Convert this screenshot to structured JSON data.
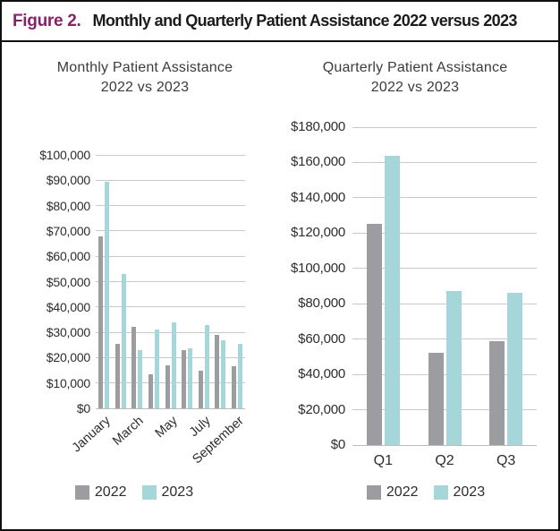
{
  "figure": {
    "label": "Figure 2.",
    "title": "Monthly and Quarterly Patient Assistance 2022 versus 2023"
  },
  "colors": {
    "accent_purple": "#86246a",
    "bar_2022": "#9b9da0",
    "bar_2023": "#a5d6d9",
    "gridline": "#c8c9ca",
    "baseline": "#babbbc",
    "axis_text": "#2e2d2c"
  },
  "chart_data": [
    {
      "id": "monthly",
      "type": "bar",
      "title": "Monthly Patient Assistance",
      "subtitle": "2022 vs 2023",
      "categories": [
        "January",
        "February",
        "March",
        "April",
        "May",
        "June",
        "July",
        "August",
        "September"
      ],
      "x_axis_labeled_categories": [
        "January",
        "March",
        "May",
        "July",
        "September"
      ],
      "series": [
        {
          "name": "2022",
          "values": [
            68000,
            25500,
            32000,
            13500,
            17000,
            23000,
            15000,
            29000,
            16500
          ]
        },
        {
          "name": "2023",
          "values": [
            89500,
            53000,
            23000,
            31000,
            34000,
            23500,
            33000,
            27000,
            25500
          ]
        }
      ],
      "ylim": [
        0,
        100000
      ],
      "ystep": 10000,
      "y_tick_labels": [
        "$0",
        "$10,000",
        "$20,000",
        "$30,000",
        "$40,000",
        "$50,000",
        "$60,000",
        "$70,000",
        "$80,000",
        "$90,000",
        "$100,000"
      ],
      "legend": [
        "2022",
        "2023"
      ],
      "legend_position": "bottom",
      "grid": "horizontal"
    },
    {
      "id": "quarterly",
      "type": "bar",
      "title": "Quarterly Patient Assistance",
      "subtitle": "2022 vs 2023",
      "categories": [
        "Q1",
        "Q2",
        "Q3"
      ],
      "series": [
        {
          "name": "2022",
          "values": [
            125000,
            52000,
            59000
          ]
        },
        {
          "name": "2023",
          "values": [
            164000,
            87000,
            86000
          ]
        }
      ],
      "ylim": [
        0,
        180000
      ],
      "ystep": 20000,
      "y_tick_labels": [
        "$0",
        "$20,000",
        "$40,000",
        "$60,000",
        "$80,000",
        "$100,000",
        "$120,000",
        "$140,000",
        "$160,000",
        "$180,000"
      ],
      "legend": [
        "2022",
        "2023"
      ],
      "legend_position": "bottom",
      "grid": "horizontal"
    }
  ]
}
